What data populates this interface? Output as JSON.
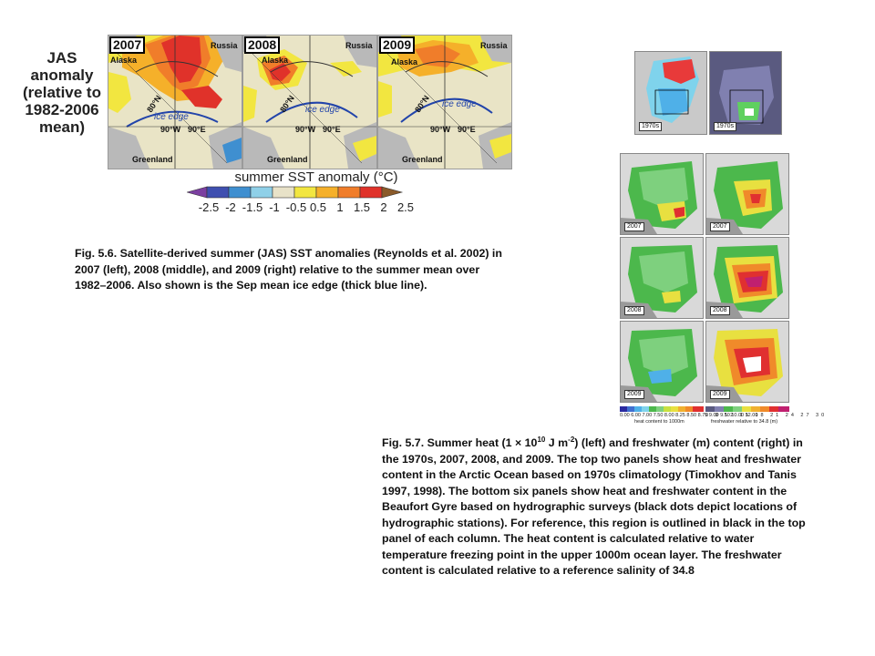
{
  "fig56": {
    "label_lines": [
      "JAS",
      "anomaly",
      "(relative to",
      "1982-2006",
      "mean)"
    ],
    "panels": [
      {
        "year": "2007",
        "alaska": "Alaska",
        "russia": "Russia",
        "lat": "80°N",
        "ice_edge": "ice edge",
        "lon_w": "90°W",
        "lon_e": "90°E",
        "greenland": "Greenland"
      },
      {
        "year": "2008",
        "alaska": "Alaska",
        "russia": "Russia",
        "lat": "80°N",
        "ice_edge": "ice edge",
        "lon_w": "90°W",
        "lon_e": "90°E",
        "greenland": "Greenland"
      },
      {
        "year": "2009",
        "alaska": "Alaska",
        "russia": "Russia",
        "lat": "80°N",
        "ice_edge": "ice edge",
        "lon_w": "90°W",
        "lon_e": "90°E",
        "greenland": "Greenland"
      }
    ],
    "colorbar_title": "summer SST anomaly (°C)",
    "colorbar_ticks": [
      "-2.5",
      "-2",
      "-1.5",
      "-1",
      "-0.5",
      "0.5",
      "1",
      "1.5",
      "2",
      "2.5"
    ],
    "colorbar_colors": [
      "#7b3fa0",
      "#3f4fb0",
      "#3f8fd0",
      "#8fd0e8",
      "#e8e2c8",
      "#f2e640",
      "#f5b02a",
      "#f07d2a",
      "#e0322a",
      "#8a5a2a"
    ],
    "caption": "Fig. 5.6. Satellite-derived summer (JAS) SST anomalies (Reynolds et al. 2002) in 2007 (left), 2008 (middle), and 2009 (right) relative to the summer mean over 1982–2006. Also shown is the Sep mean ice edge (thick blue line)."
  },
  "fig57": {
    "panel_labels": [
      "1970s",
      "1970s",
      "2007",
      "2007",
      "2008",
      "2008",
      "2009",
      "2009"
    ],
    "heat_cb_label": "heat content to 1000m",
    "fw_cb_label": "freshwater relative to 34.8 (m)",
    "heat_ticks": "0.00 6.00 7.00 7.50 8.00 8.25 8.50 8.75 9.00 9.50 10.00 12.00",
    "fw_ticks": "0 9 12 15 18 21 24 27 30",
    "caption_pre": "Fig. 5.7. Summer heat (1 × 10",
    "caption_sup1": "10",
    "caption_mid": " J m",
    "caption_sup2": "-2",
    "caption_post": ") (left) and freshwater (m) content (right) in the 1970s, 2007, 2008, and 2009. The top two panels show heat and freshwater content in the Arctic Ocean based on 1970s climatology (Timokhov and Tanis 1997, 1998). The bottom six panels show heat and freshwater content in the Beaufort Gyre based on hydrographic surveys (black dots depict locations of hydrographic stations). For reference, this region is outlined in black in the top panel of each column. The heat content is calculated relative to water temperature freezing point in the upper 1000m ocean layer. The freshwater content is calculated relative to a reference salinity of 34.8"
  }
}
